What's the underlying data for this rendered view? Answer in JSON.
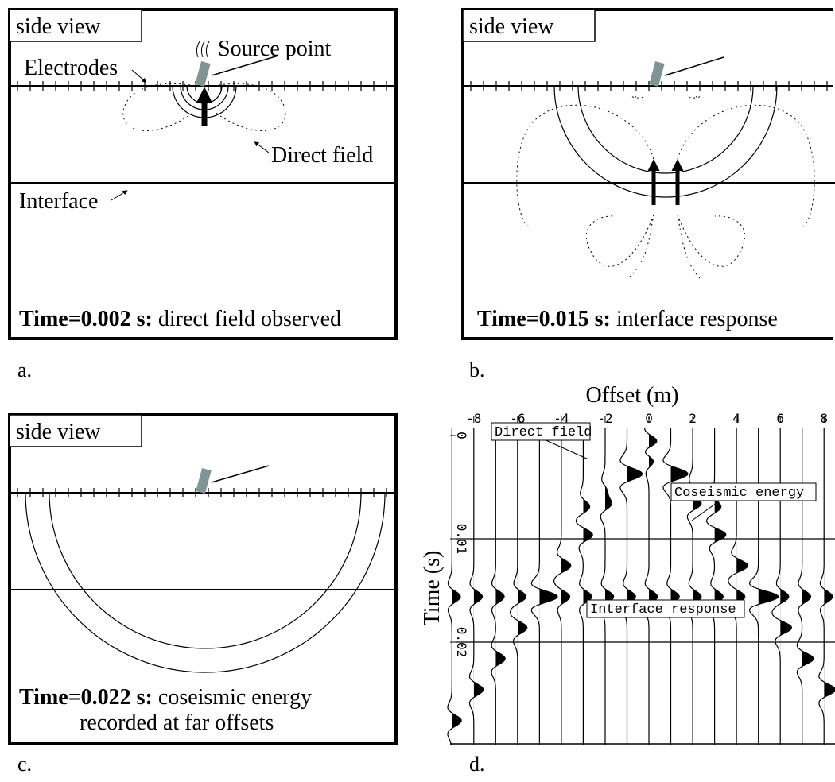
{
  "panels": [
    {
      "label": "a.",
      "view": "side view",
      "caption_bold": "Time=0.002 s:",
      "caption": "direct field observed",
      "annotations": [
        "Source point",
        "Electrodes",
        "Direct field",
        "Interface"
      ]
    },
    {
      "label": "b.",
      "view": "side view",
      "caption_bold": "Time=0.015 s:",
      "caption": "interface response"
    },
    {
      "label": "c.",
      "view": "side view",
      "caption_bold": "Time=0.022 s:",
      "caption": "coseismic energy",
      "caption_line2": "recorded at far offsets"
    },
    {
      "label": "d.",
      "x_label": "Offset (m)",
      "y_label": "Time (s)",
      "xlim": [
        -9.3,
        8.5
      ],
      "xticks": [
        -8,
        -6,
        -4,
        -2,
        0,
        2,
        4,
        6,
        8
      ],
      "ylim": [
        0,
        0.03
      ],
      "yticks": [
        0,
        0.01,
        0.02
      ],
      "annotations": [
        "Direct field",
        "Coseismic energy",
        "Interface response"
      ]
    }
  ]
}
